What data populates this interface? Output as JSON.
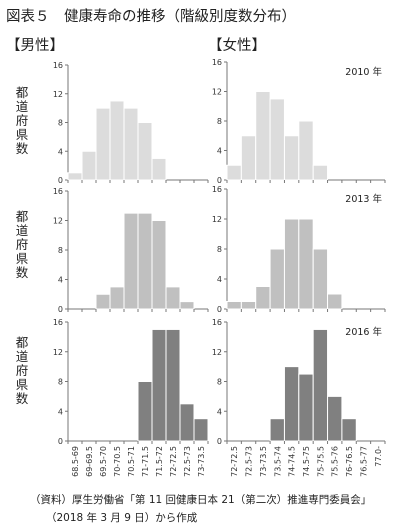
{
  "header": {
    "title": "図表５　健康寿命の推移（階級別度数分布）",
    "male_label": "【男性】",
    "female_label": "【女性】",
    "ylabel": "都道府県数"
  },
  "footer": {
    "line1": "（資料）厚生労働省「第 11 回健康日本 21（第二次）推進専門委員会」",
    "line2": "（2018 年 3 月 9 日）から作成"
  },
  "chart_data": [
    {
      "type": "bar",
      "sex": "male",
      "year_label": "",
      "categories": [
        "68.5-69",
        "69-69.5",
        "69.5-70",
        "70-70.5",
        "70.5-71",
        "71-71.5",
        "71.5-72",
        "72-72.5",
        "72.5-73",
        "73-73.5"
      ],
      "values": [
        1,
        4,
        10,
        11,
        10,
        8,
        3,
        0,
        0,
        0
      ],
      "ylim": [
        0,
        16
      ],
      "yticks": [
        0,
        4,
        8,
        12,
        16
      ],
      "color": "#dcdcdc",
      "show_xticks": false
    },
    {
      "type": "bar",
      "sex": "female",
      "year_label": "2010 年",
      "categories": [
        "72-72.5",
        "72.5-73",
        "73-73.5",
        "73.5-74",
        "74-74.5",
        "74.5-75",
        "75-75.5",
        "75.5-76",
        "76-76.5",
        "76.5-77",
        "77.0-"
      ],
      "values": [
        2,
        6,
        12,
        11,
        6,
        8,
        2,
        0,
        0,
        0,
        0
      ],
      "ylim": [
        0,
        16
      ],
      "yticks": [
        0,
        4,
        8,
        12,
        16
      ],
      "color": "#dcdcdc",
      "show_xticks": false
    },
    {
      "type": "bar",
      "sex": "male",
      "year_label": "",
      "categories": [
        "68.5-69",
        "69-69.5",
        "69.5-70",
        "70-70.5",
        "70.5-71",
        "71-71.5",
        "71.5-72",
        "72-72.5",
        "72.5-73",
        "73-73.5"
      ],
      "values": [
        0,
        0,
        2,
        3,
        13,
        13,
        12,
        3,
        1,
        0
      ],
      "ylim": [
        0,
        16
      ],
      "yticks": [
        0,
        4,
        8,
        12,
        16
      ],
      "color": "#c0c0c0",
      "show_xticks": false
    },
    {
      "type": "bar",
      "sex": "female",
      "year_label": "2013 年",
      "categories": [
        "72-72.5",
        "72.5-73",
        "73-73.5",
        "73.5-74",
        "74-74.5",
        "74.5-75",
        "75-75.5",
        "75.5-76",
        "76-76.5",
        "76.5-77",
        "77.0-"
      ],
      "values": [
        1,
        1,
        3,
        8,
        12,
        12,
        8,
        2,
        0,
        0,
        0
      ],
      "ylim": [
        0,
        16
      ],
      "yticks": [
        0,
        4,
        8,
        12,
        16
      ],
      "color": "#c0c0c0",
      "show_xticks": false
    },
    {
      "type": "bar",
      "sex": "male",
      "year_label": "",
      "categories": [
        "68.5-69",
        "69-69.5",
        "69.5-70",
        "70-70.5",
        "70.5-71",
        "71-71.5",
        "71.5-72",
        "72-72.5",
        "72.5-73",
        "73-73.5"
      ],
      "values": [
        0,
        0,
        0,
        0,
        0,
        8,
        15,
        15,
        5,
        3
      ],
      "ylim": [
        0,
        16
      ],
      "yticks": [
        0,
        4,
        8,
        12,
        16
      ],
      "color": "#808080",
      "show_xticks": true
    },
    {
      "type": "bar",
      "sex": "female",
      "year_label": "2016 年",
      "categories": [
        "72-72.5",
        "72.5-73",
        "73-73.5",
        "73.5-74",
        "74-74.5",
        "74.5-75",
        "75-75.5",
        "75.5-76",
        "76-76.5",
        "76.5-77",
        "77.0-"
      ],
      "values": [
        0,
        0,
        0,
        3,
        10,
        9,
        15,
        6,
        3,
        0,
        0
      ],
      "ylim": [
        0,
        16
      ],
      "yticks": [
        0,
        4,
        8,
        12,
        16
      ],
      "color": "#808080",
      "show_xticks": true
    }
  ]
}
